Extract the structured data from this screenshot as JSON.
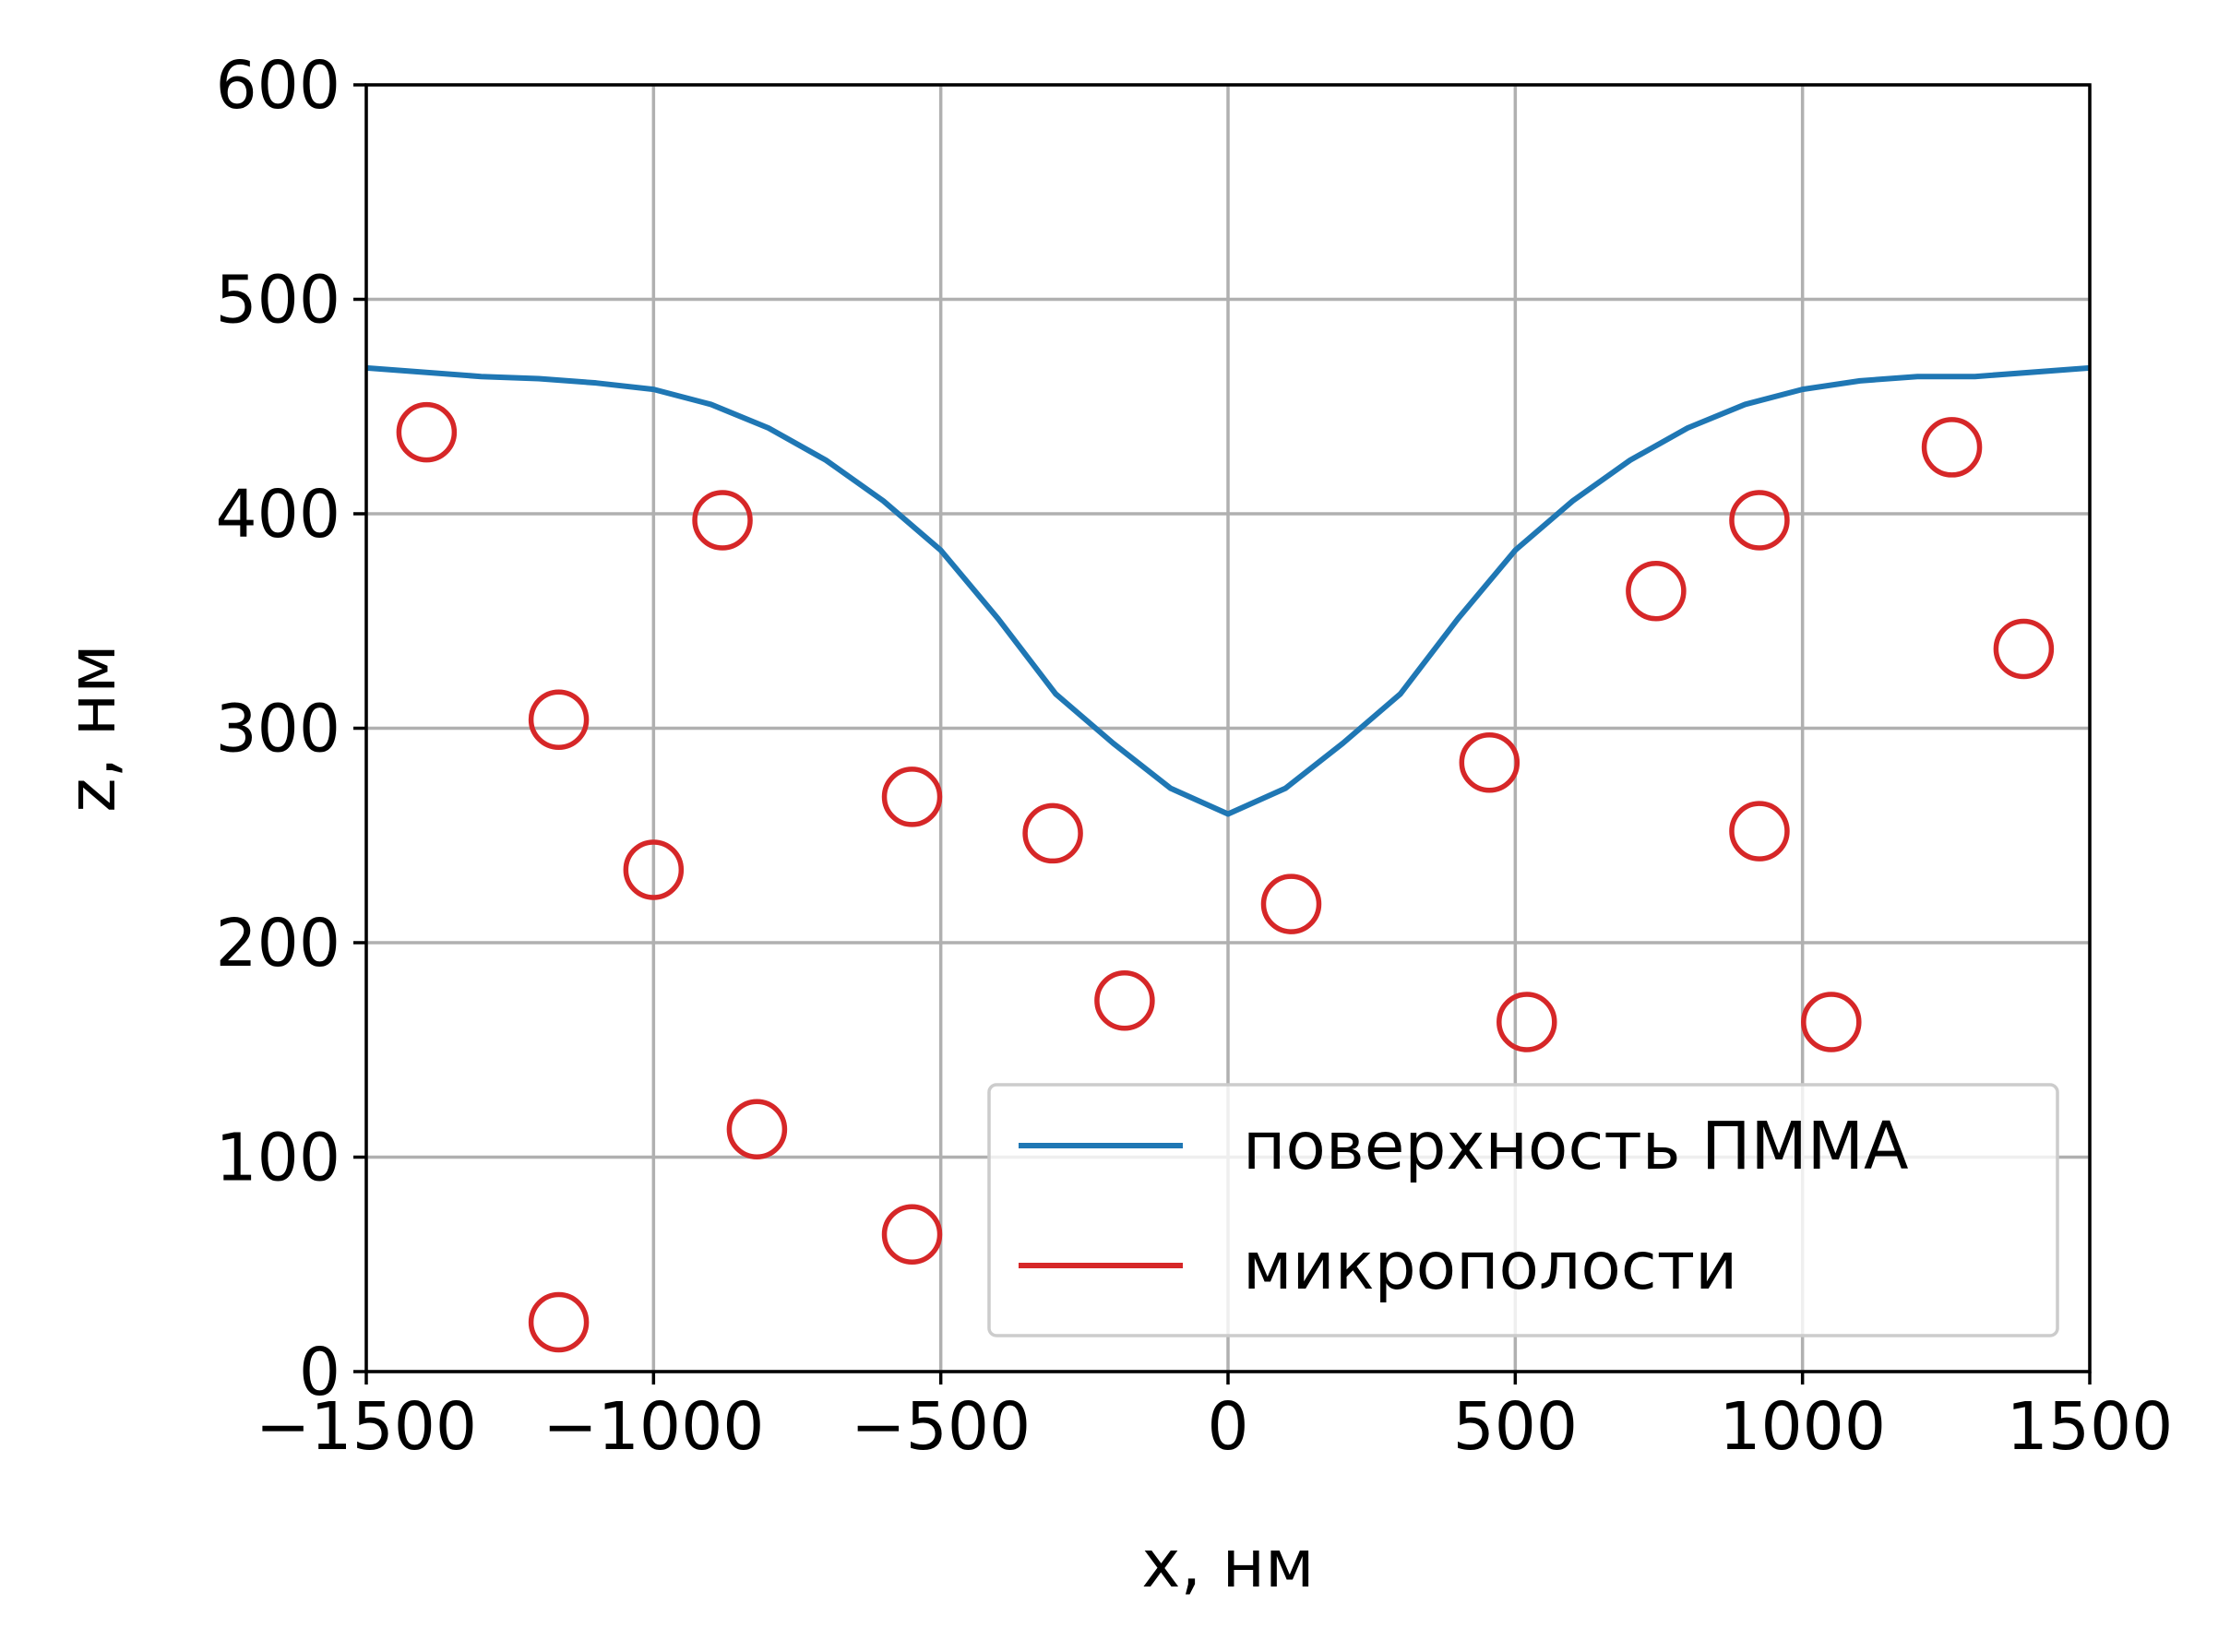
{
  "chart_data": {
    "type": "scatter",
    "xlabel": "x, нм",
    "ylabel": "z, нм",
    "xlim": [
      -1500,
      1500
    ],
    "ylim": [
      0,
      600
    ],
    "xticks": [
      -1500,
      -1000,
      -500,
      0,
      500,
      1000,
      1500
    ],
    "yticks": [
      0,
      100,
      200,
      300,
      400,
      500,
      600
    ],
    "xtick_labels": [
      "−1500",
      "−1000",
      "−500",
      "0",
      "500",
      "1000",
      "1500"
    ],
    "ytick_labels": [
      "0",
      "100",
      "200",
      "300",
      "400",
      "500",
      "600"
    ],
    "grid": true,
    "legend": {
      "placement": "lower-right",
      "entries": [
        {
          "label": "поверхность ПММА",
          "color": "#1f77b4"
        },
        {
          "label": "микрополости",
          "color": "#d62728"
        }
      ]
    },
    "series": [
      {
        "name": "поверхность ПММА",
        "kind": "line",
        "color": "#1f77b4",
        "x": [
          -1500,
          -1300,
          -1200,
          -1100,
          -1000,
          -900,
          -800,
          -700,
          -600,
          -500,
          -400,
          -300,
          -200,
          -100,
          0,
          100,
          200,
          300,
          400,
          500,
          600,
          700,
          800,
          900,
          1000,
          1100,
          1200,
          1300,
          1500
        ],
        "y": [
          468,
          464,
          463,
          461,
          458,
          451,
          440,
          425,
          406,
          383,
          351,
          316,
          293,
          272,
          260,
          272,
          293,
          316,
          351,
          383,
          406,
          425,
          440,
          451,
          458,
          462,
          464,
          464,
          468
        ]
      },
      {
        "name": "микрополости",
        "kind": "scatter",
        "color": "#d62728",
        "marker": "open-circle",
        "x": [
          -1395,
          -1165,
          -1000,
          -880,
          -820,
          -550,
          -550,
          -305,
          -180,
          110,
          455,
          520,
          745,
          925,
          925,
          1050,
          1260,
          1385
        ],
        "y": [
          438,
          304,
          234,
          397,
          113,
          268,
          64,
          251,
          173,
          218,
          284,
          163,
          364,
          397,
          252,
          163,
          431,
          337
        ]
      },
      {
        "name": "микрополости",
        "kind": "scatter-extra",
        "color": "#d62728",
        "x": [
          -1165
        ],
        "y": [
          23
        ]
      }
    ]
  }
}
